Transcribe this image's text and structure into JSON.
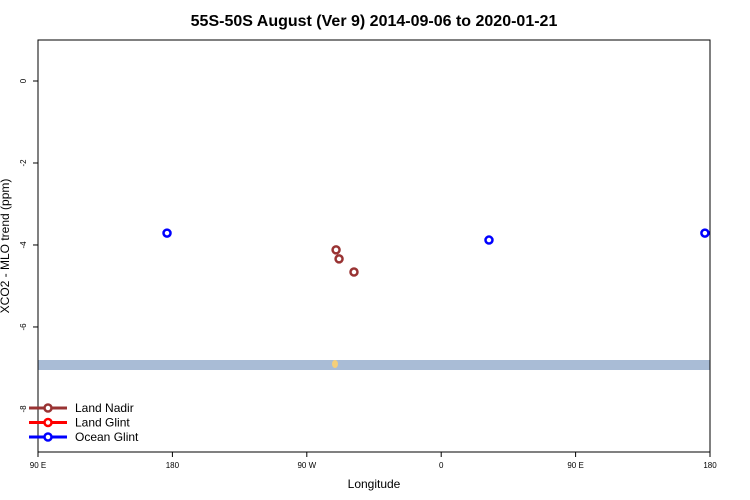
{
  "chart_data": {
    "type": "scatter",
    "title": "55S-50S August (Ver 9)   2014-09-06 to 2020-01-21",
    "x_label": "Longitude",
    "y_label": "XCO2 - MLO trend (ppm)",
    "xlim": [
      90,
      540
    ],
    "ylim": [
      -9.05,
      1.0
    ],
    "xticks": [
      {
        "value": 90,
        "label": "90 E"
      },
      180,
      {
        "value": 270,
        "label": "90 W"
      },
      {
        "value": 360,
        "label": "0"
      },
      {
        "value": 450,
        "label": "90 E"
      },
      {
        "value": 540,
        "label": "180"
      }
    ],
    "yticks": [
      0,
      -2,
      -4,
      -6,
      -8
    ],
    "legend": "bottom-left",
    "series": [
      {
        "name": "Land Nadir",
        "color": "#993333",
        "x": [
          289.6,
          291.6,
          301.6
        ],
        "values": [
          -4.12,
          -4.34,
          -4.66
        ]
      },
      {
        "name": "Land Glint",
        "color": "#ff0000",
        "x": [],
        "values": []
      },
      {
        "name": "Ocean Glint",
        "color": "#0000ff",
        "x": [
          176.4,
          392,
          536.6
        ],
        "values": [
          -3.71,
          -3.88,
          -3.71
        ]
      }
    ]
  }
}
